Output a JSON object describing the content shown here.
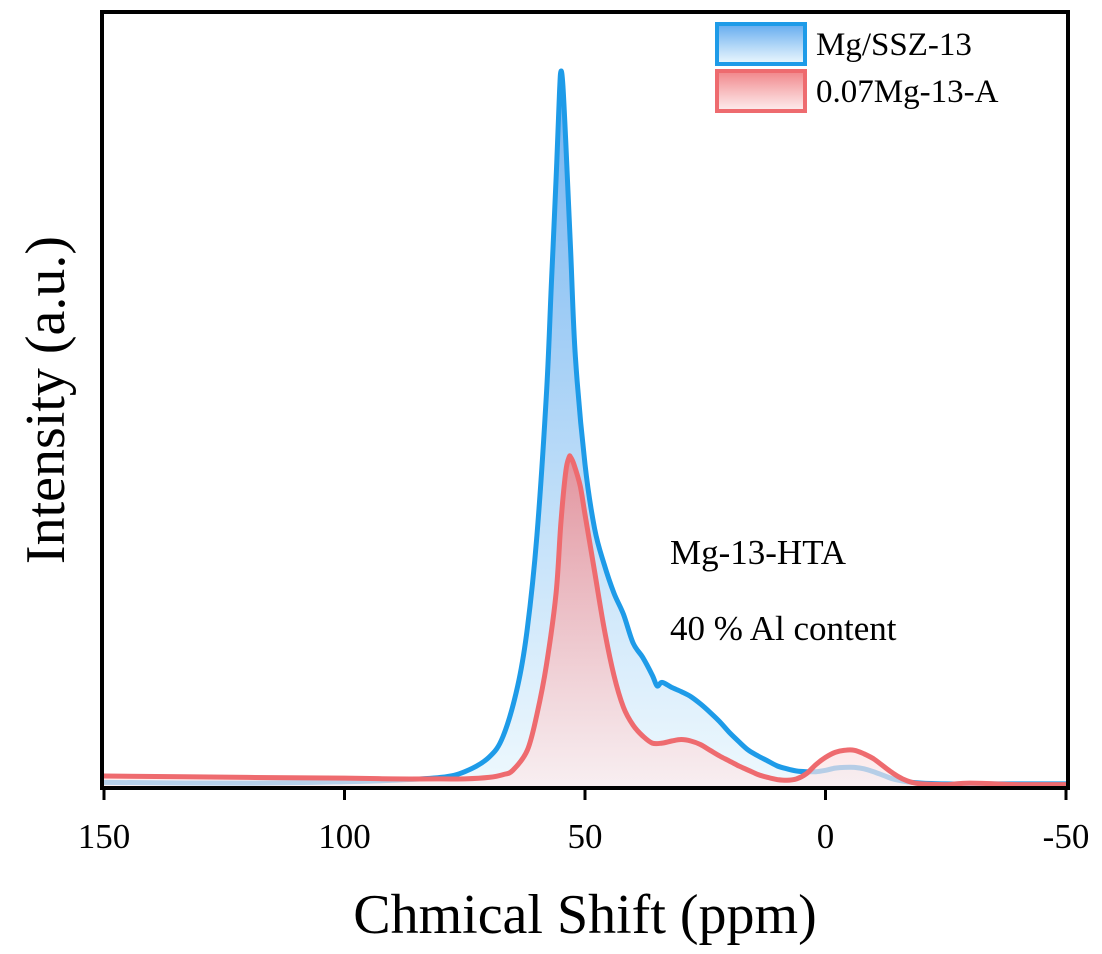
{
  "chart_data": {
    "type": "area",
    "xlabel": "Chmical Shift (ppm)",
    "ylabel": "Intensity (a.u.)",
    "xlim": [
      150,
      -50
    ],
    "xticks": [
      150,
      100,
      50,
      0,
      -50
    ],
    "ylim": [
      0,
      1.08
    ],
    "y_ticks_labeled": false,
    "grid": false,
    "legend_position": "top-right",
    "annotations": [
      "Mg-13-HTA",
      "40 % Al content"
    ],
    "series": [
      {
        "name": "Mg/SSZ-13",
        "color": "#1E9BE8",
        "fill_top": "#5AA6EE",
        "fill_bottom": "#E8F6FD",
        "x": [
          150,
          120,
          100,
          90,
          80,
          75,
          70,
          67,
          64,
          62,
          60,
          58,
          57,
          56,
          55.3,
          55,
          54.6,
          54,
          53,
          52,
          50,
          48,
          46,
          44,
          42,
          40,
          38,
          36,
          35,
          34,
          32,
          30,
          28,
          26,
          24,
          22,
          20,
          18,
          16,
          14,
          12,
          10,
          8,
          6,
          4,
          2,
          0,
          -2,
          -4,
          -6,
          -8,
          -10,
          -12,
          -14,
          -16,
          -18,
          -20,
          -25,
          -30,
          -40,
          -50
        ],
        "y": [
          0.005,
          0.004,
          0.006,
          0.008,
          0.012,
          0.02,
          0.04,
          0.07,
          0.14,
          0.22,
          0.35,
          0.55,
          0.7,
          0.85,
          0.97,
          1.0,
          0.98,
          0.9,
          0.75,
          0.6,
          0.45,
          0.36,
          0.31,
          0.27,
          0.24,
          0.2,
          0.18,
          0.155,
          0.14,
          0.145,
          0.138,
          0.132,
          0.125,
          0.115,
          0.103,
          0.09,
          0.075,
          0.062,
          0.05,
          0.042,
          0.035,
          0.028,
          0.024,
          0.021,
          0.02,
          0.02,
          0.022,
          0.025,
          0.026,
          0.026,
          0.024,
          0.02,
          0.015,
          0.01,
          0.007,
          0.005,
          0.004,
          0.003,
          0.003,
          0.003,
          0.003
        ]
      },
      {
        "name": "0.07Mg-13-A",
        "color": "#EE6B6F",
        "fill_top": "#F07E82",
        "fill_bottom": "#FDEAEB",
        "x": [
          150,
          120,
          100,
          90,
          80,
          75,
          70,
          67,
          65,
          62,
          60,
          58,
          56,
          55,
          54,
          53.3,
          53,
          52.3,
          51,
          50,
          48,
          46,
          44,
          42,
          40,
          38,
          36,
          34,
          32,
          30,
          28,
          26,
          24,
          22,
          20,
          18,
          16,
          14,
          12,
          10,
          8,
          6,
          4,
          2,
          0,
          -2,
          -4,
          -6,
          -8,
          -10,
          -12,
          -14,
          -16,
          -18,
          -20,
          -25,
          -30,
          -40,
          -50
        ],
        "y": [
          0.014,
          0.012,
          0.011,
          0.01,
          0.01,
          0.01,
          0.012,
          0.016,
          0.022,
          0.05,
          0.1,
          0.17,
          0.27,
          0.37,
          0.44,
          0.46,
          0.46,
          0.45,
          0.42,
          0.38,
          0.3,
          0.22,
          0.155,
          0.11,
          0.085,
          0.07,
          0.06,
          0.06,
          0.063,
          0.065,
          0.063,
          0.058,
          0.05,
          0.042,
          0.035,
          0.028,
          0.022,
          0.016,
          0.012,
          0.009,
          0.008,
          0.01,
          0.017,
          0.03,
          0.04,
          0.047,
          0.05,
          0.05,
          0.045,
          0.038,
          0.028,
          0.018,
          0.01,
          0.005,
          0.003,
          0.002,
          0.004,
          0.002,
          0.002
        ]
      }
    ]
  }
}
